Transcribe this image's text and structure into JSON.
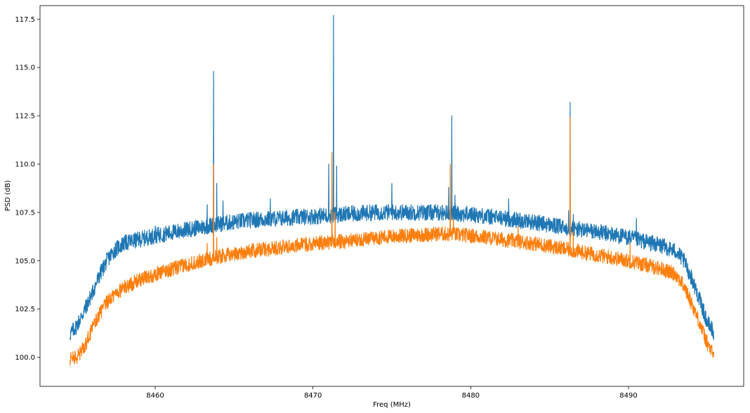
{
  "chart_data": {
    "type": "line",
    "title": "",
    "xlabel": "Freq (MHz)",
    "ylabel": "PSD (dB)",
    "xlim": [
      8452.7,
      8497.3
    ],
    "ylim": [
      98.5,
      118.2
    ],
    "x_ticks": [
      8460,
      8470,
      8480,
      8490
    ],
    "x_tick_labels": [
      "8460",
      "8470",
      "8480",
      "8490"
    ],
    "y_ticks": [
      100.0,
      102.5,
      105.0,
      107.5,
      110.0,
      112.5,
      115.0,
      117.5
    ],
    "y_tick_labels": [
      "100.0",
      "102.5",
      "105.0",
      "107.5",
      "110.0",
      "112.5",
      "115.0",
      "117.5"
    ],
    "grid": false,
    "legend": "none",
    "x_range": [
      8454.6,
      8495.4
    ],
    "series": [
      {
        "color": "#1f77b4",
        "envelope": {
          "x": [
            8454.6,
            8455.0,
            8455.5,
            8456.0,
            8456.5,
            8457.0,
            8457.5,
            8458.0,
            8459.0,
            8460.0,
            8462.0,
            8464.0,
            8466.0,
            8468.0,
            8470.0,
            8472.0,
            8474.0,
            8476.0,
            8478.0,
            8480.0,
            8482.0,
            8484.0,
            8486.0,
            8488.0,
            8490.0,
            8491.0,
            8492.0,
            8493.0,
            8493.5,
            8494.0,
            8494.5,
            8495.0,
            8495.4
          ],
          "y": [
            101.2,
            101.6,
            102.4,
            103.3,
            104.3,
            105.1,
            105.6,
            105.9,
            106.1,
            106.3,
            106.6,
            106.9,
            107.1,
            107.2,
            107.3,
            107.4,
            107.5,
            107.5,
            107.5,
            107.4,
            107.2,
            107.0,
            106.7,
            106.5,
            106.2,
            106.0,
            105.8,
            105.5,
            105.0,
            104.1,
            103.0,
            101.8,
            101.3
          ]
        },
        "noise": 0.42,
        "spikes": [
          {
            "x": 8463.3,
            "y": 107.9
          },
          {
            "x": 8463.7,
            "y": 114.8
          },
          {
            "x": 8463.9,
            "y": 109.0
          },
          {
            "x": 8464.3,
            "y": 108.1
          },
          {
            "x": 8460.0,
            "y": 106.8
          },
          {
            "x": 8467.3,
            "y": 108.2
          },
          {
            "x": 8471.0,
            "y": 110.0
          },
          {
            "x": 8471.3,
            "y": 117.7
          },
          {
            "x": 8471.5,
            "y": 109.9
          },
          {
            "x": 8475.0,
            "y": 109.0
          },
          {
            "x": 8478.6,
            "y": 108.8
          },
          {
            "x": 8478.8,
            "y": 112.5
          },
          {
            "x": 8479.0,
            "y": 108.4
          },
          {
            "x": 8482.4,
            "y": 108.2
          },
          {
            "x": 8486.2,
            "y": 107.6
          },
          {
            "x": 8486.3,
            "y": 113.2
          },
          {
            "x": 8486.5,
            "y": 107.4
          },
          {
            "x": 8490.0,
            "y": 106.5
          },
          {
            "x": 8490.5,
            "y": 107.2
          }
        ]
      },
      {
        "color": "#ff7f0e",
        "envelope": {
          "x": [
            8454.6,
            8455.0,
            8455.5,
            8456.0,
            8456.5,
            8457.0,
            8457.5,
            8458.0,
            8459.0,
            8460.0,
            8462.0,
            8464.0,
            8466.0,
            8468.0,
            8470.0,
            8472.0,
            8474.0,
            8476.0,
            8478.0,
            8480.0,
            8482.0,
            8484.0,
            8486.0,
            8488.0,
            8490.0,
            8491.0,
            8492.0,
            8493.0,
            8493.5,
            8494.0,
            8494.5,
            8495.0,
            8495.4
          ],
          "y": [
            99.9,
            100.0,
            100.5,
            101.5,
            102.3,
            102.9,
            103.3,
            103.6,
            104.0,
            104.3,
            104.8,
            105.2,
            105.5,
            105.7,
            105.9,
            106.0,
            106.2,
            106.3,
            106.4,
            106.3,
            106.1,
            105.9,
            105.6,
            105.3,
            105.0,
            104.8,
            104.6,
            104.3,
            103.7,
            102.8,
            101.8,
            100.7,
            100.1
          ]
        },
        "noise": 0.38,
        "spikes": [
          {
            "x": 8463.3,
            "y": 105.9
          },
          {
            "x": 8463.7,
            "y": 110.0
          },
          {
            "x": 8463.9,
            "y": 106.2
          },
          {
            "x": 8464.3,
            "y": 105.6
          },
          {
            "x": 8471.2,
            "y": 110.6
          },
          {
            "x": 8471.4,
            "y": 107.5
          },
          {
            "x": 8478.7,
            "y": 110.0
          },
          {
            "x": 8478.9,
            "y": 107.2
          },
          {
            "x": 8483.0,
            "y": 106.8
          },
          {
            "x": 8486.3,
            "y": 112.4
          },
          {
            "x": 8486.5,
            "y": 106.5
          },
          {
            "x": 8490.1,
            "y": 105.9
          }
        ]
      }
    ]
  }
}
